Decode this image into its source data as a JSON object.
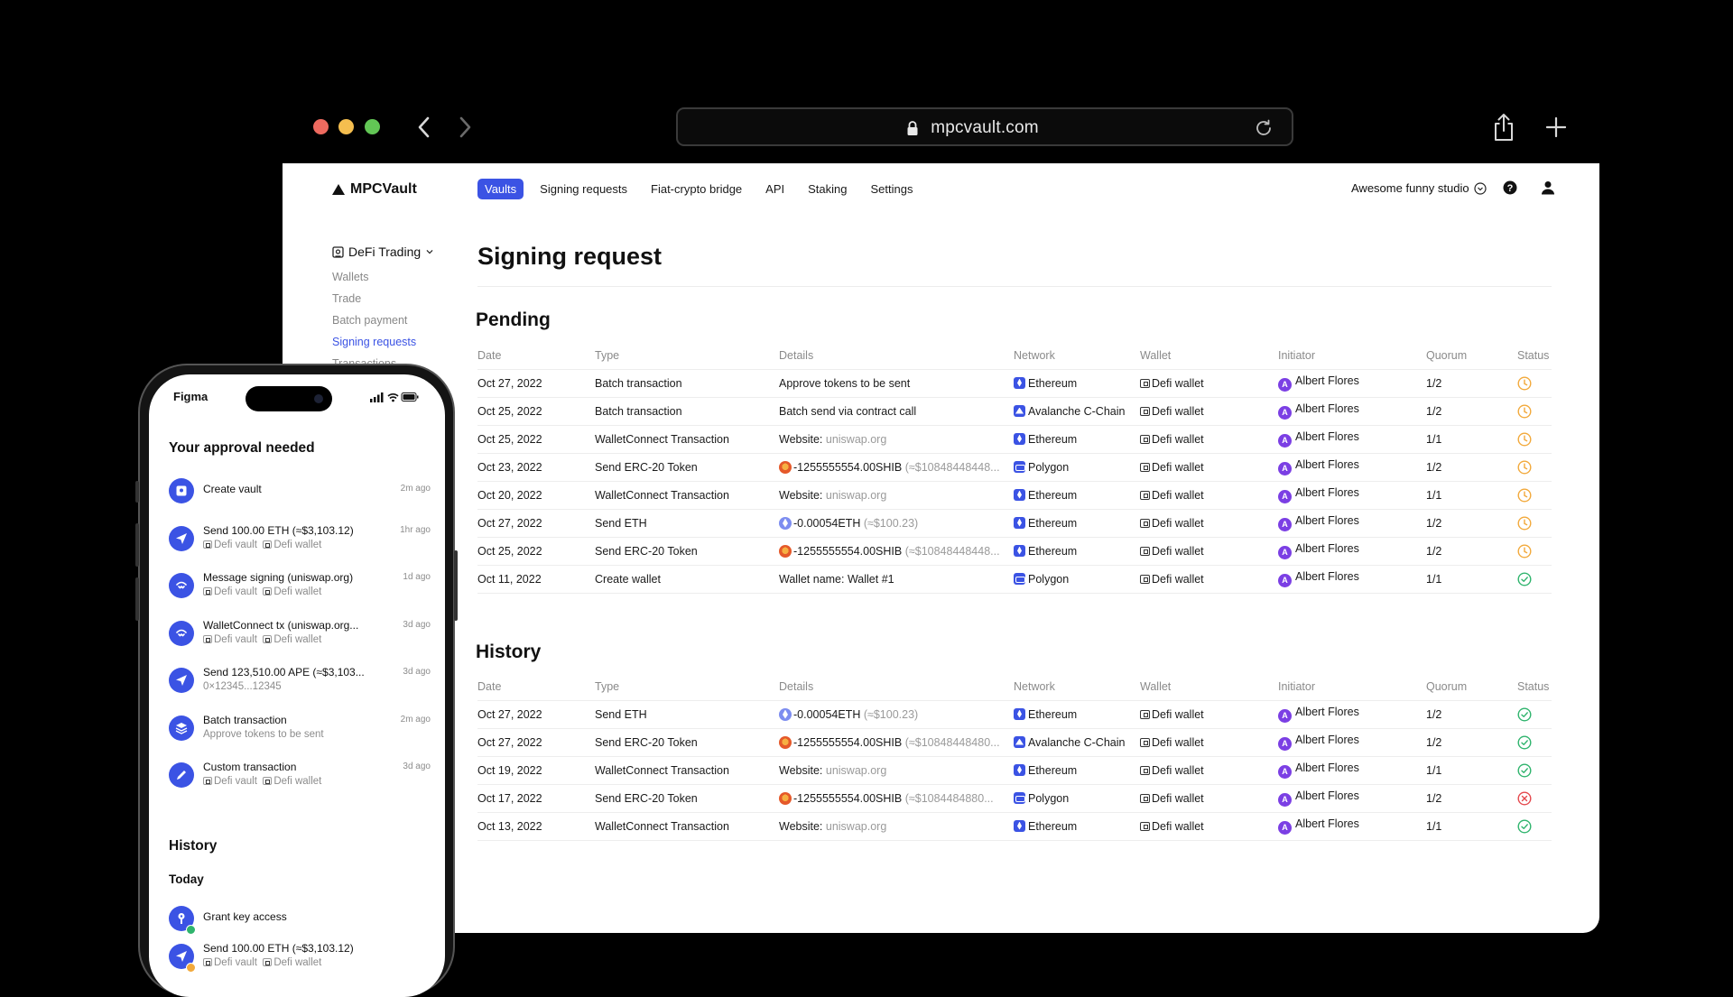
{
  "browser": {
    "url": "mpcvault.com"
  },
  "app": {
    "logo": "MPCVault",
    "nav": [
      "Vaults",
      "Signing requests",
      "Fiat-crypto bridge",
      "API",
      "Staking",
      "Settings"
    ],
    "active_nav": "Vaults",
    "studio": "Awesome funny studio"
  },
  "sidebar": {
    "space": "DeFi Trading",
    "items": [
      "Wallets",
      "Trade",
      "Batch payment",
      "Signing requests",
      "Transactions"
    ],
    "active": "Signing requests"
  },
  "main": {
    "title": "Signing request",
    "columns": [
      "Date",
      "Type",
      "Details",
      "Network",
      "Wallet",
      "Initiator",
      "Quorum",
      "Status"
    ],
    "pending": {
      "title": "Pending",
      "rows": [
        {
          "date": "Oct 27, 2022",
          "type": "Batch transaction",
          "details": "Approve tokens to be sent",
          "details_muted": "",
          "token": "",
          "network": "Ethereum",
          "net": "eth",
          "wallet": "Defi wallet",
          "initiator": "Albert Flores",
          "quorum": "1/2",
          "status": "pending"
        },
        {
          "date": "Oct 25, 2022",
          "type": "Batch transaction",
          "details": "Batch send via contract call",
          "details_muted": "",
          "token": "",
          "network": "Avalanche C-Chain",
          "net": "avax",
          "wallet": "Defi wallet",
          "initiator": "Albert Flores",
          "quorum": "1/2",
          "status": "pending"
        },
        {
          "date": "Oct 25, 2022",
          "type": "WalletConnect Transaction",
          "details": "Website: ",
          "details_muted": "uniswap.org",
          "token": "",
          "network": "Ethereum",
          "net": "eth",
          "wallet": "Defi wallet",
          "initiator": "Albert Flores",
          "quorum": "1/1",
          "status": "pending"
        },
        {
          "date": "Oct 23, 2022",
          "type": "Send ERC-20 Token",
          "details": "-1255555554.00SHIB ",
          "details_muted": "(≈$10848448448...",
          "token": "shib",
          "network": "Polygon",
          "net": "poly",
          "wallet": "Defi wallet",
          "initiator": "Albert Flores",
          "quorum": "1/2",
          "status": "pending"
        },
        {
          "date": "Oct 20, 2022",
          "type": "WalletConnect Transaction",
          "details": "Website: ",
          "details_muted": "uniswap.org",
          "token": "",
          "network": "Ethereum",
          "net": "eth",
          "wallet": "Defi wallet",
          "initiator": "Albert Flores",
          "quorum": "1/1",
          "status": "pending"
        },
        {
          "date": "Oct 27, 2022",
          "type": "Send ETH",
          "details": "-0.00054ETH ",
          "details_muted": "(≈$100.23)",
          "token": "eth",
          "network": "Ethereum",
          "net": "eth",
          "wallet": "Defi wallet",
          "initiator": "Albert Flores",
          "quorum": "1/2",
          "status": "pending"
        },
        {
          "date": "Oct 25, 2022",
          "type": "Send ERC-20 Token",
          "details": "-1255555554.00SHIB ",
          "details_muted": "(≈$10848448448...",
          "token": "shib",
          "network": "Ethereum",
          "net": "eth",
          "wallet": "Defi wallet",
          "initiator": "Albert Flores",
          "quorum": "1/2",
          "status": "pending"
        },
        {
          "date": "Oct 11, 2022",
          "type": "Create wallet",
          "details": "Wallet name: Wallet #1",
          "details_muted": "",
          "token": "",
          "network": "Polygon",
          "net": "poly",
          "wallet": "Defi wallet",
          "initiator": "Albert Flores",
          "quorum": "1/1",
          "status": "success"
        }
      ]
    },
    "history": {
      "title": "History",
      "rows": [
        {
          "date": "Oct 27, 2022",
          "type": "Send ETH",
          "details": "-0.00054ETH ",
          "details_muted": "(≈$100.23)",
          "token": "eth",
          "network": "Ethereum",
          "net": "eth",
          "wallet": "Defi wallet",
          "initiator": "Albert Flores",
          "quorum": "1/2",
          "status": "success"
        },
        {
          "date": "Oct 27, 2022",
          "type": "Send ERC-20 Token",
          "details": "-1255555554.00SHIB ",
          "details_muted": "(≈$10848448480...",
          "token": "shib",
          "network": "Avalanche C-Chain",
          "net": "avax",
          "wallet": "Defi wallet",
          "initiator": "Albert Flores",
          "quorum": "1/2",
          "status": "success"
        },
        {
          "date": "Oct 19, 2022",
          "type": "WalletConnect Transaction",
          "details": "Website: ",
          "details_muted": "uniswap.org",
          "token": "",
          "network": "Ethereum",
          "net": "eth",
          "wallet": "Defi wallet",
          "initiator": "Albert Flores",
          "quorum": "1/1",
          "status": "success"
        },
        {
          "date": "Oct 17, 2022",
          "type": "Send ERC-20 Token",
          "details": "-1255555554.00SHIB ",
          "details_muted": "(≈$1084484880...",
          "token": "shib",
          "network": "Polygon",
          "net": "poly",
          "wallet": "Defi wallet",
          "initiator": "Albert Flores",
          "quorum": "1/2",
          "status": "failed"
        },
        {
          "date": "Oct 13, 2022",
          "type": "WalletConnect Transaction",
          "details": "Website: ",
          "details_muted": "uniswap.org",
          "token": "",
          "network": "Ethereum",
          "net": "eth",
          "wallet": "Defi wallet",
          "initiator": "Albert Flores",
          "quorum": "1/1",
          "status": "success"
        }
      ]
    }
  },
  "phone": {
    "carrier": "Figma",
    "title": "Your approval needed",
    "items": [
      {
        "icon": "vault",
        "main": "Create vault",
        "sub": "",
        "ago": "2m ago"
      },
      {
        "icon": "send",
        "main": "Send 100.00 ETH (≈$3,103.12)",
        "sub": "Defi vault  Defi wallet",
        "ago": "1hr ago"
      },
      {
        "icon": "walletconnect",
        "main": "Message signing (uniswap.org)",
        "sub": "Defi vault  Defi wallet",
        "ago": "1d ago"
      },
      {
        "icon": "walletconnect",
        "main": "WalletConnect tx (uniswap.org...",
        "sub": "Defi vault  Defi wallet",
        "ago": "3d ago"
      },
      {
        "icon": "send",
        "main": "Send 123,510.00 APE (≈$3,103...",
        "sub": "0×12345...12345",
        "ago": "3d ago"
      },
      {
        "icon": "batch",
        "main": "Batch transaction",
        "sub": "Approve tokens to be sent",
        "ago": "2m ago"
      },
      {
        "icon": "custom",
        "main": "Custom transaction",
        "sub": "Defi vault  Defi wallet",
        "ago": "3d ago"
      }
    ],
    "history_title": "History",
    "today": "Today",
    "history_items": [
      {
        "icon": "key",
        "main": "Grant key access",
        "sub": "",
        "badge": "#2fb46d"
      },
      {
        "icon": "send",
        "main": "Send 100.00 ETH (≈$3,103.12)",
        "sub": "Defi vault  Defi wallet",
        "badge": "#f2a93b"
      }
    ]
  },
  "colors": {
    "accent": "#3b53e4",
    "pending": "#f2a93b",
    "success": "#2fb46d",
    "failed": "#e5484d",
    "avatar": "#7b3fe4"
  }
}
